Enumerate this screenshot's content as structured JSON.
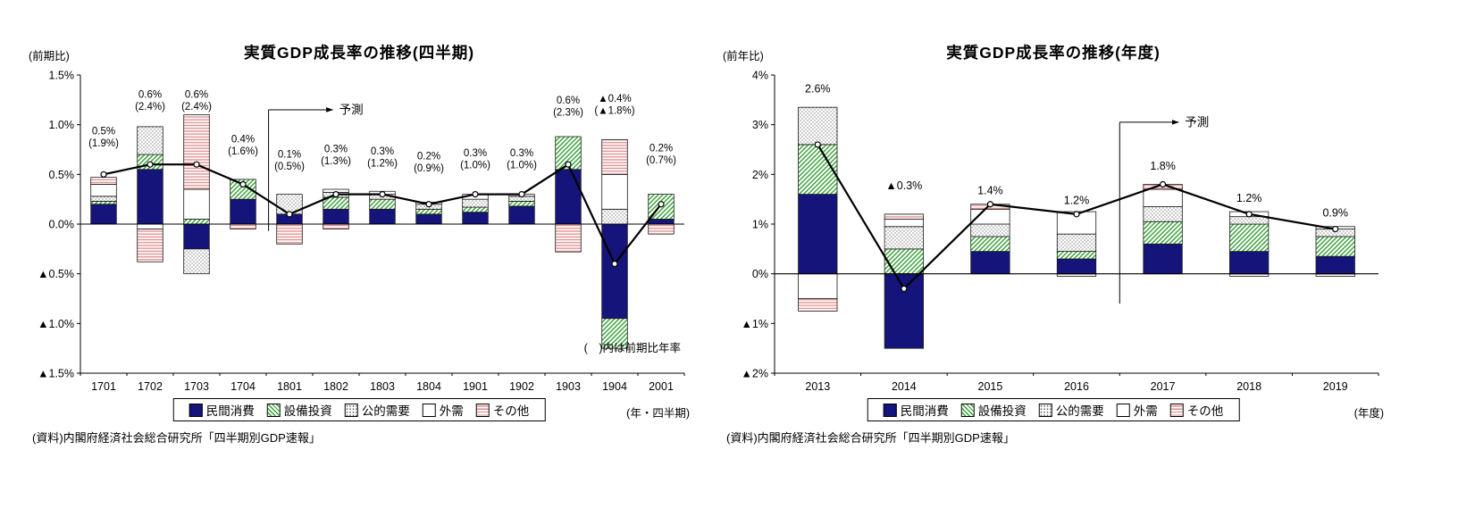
{
  "palette": {
    "navy": "#14147a",
    "green": "#33a033",
    "dot": "#555555",
    "pink": "#e08a8a",
    "line": "#000000"
  },
  "legend": {
    "items": [
      {
        "label": "民間消費",
        "style": "navy"
      },
      {
        "label": "設備投資",
        "style": "green-hatch"
      },
      {
        "label": "公的需要",
        "style": "dots"
      },
      {
        "label": "外需",
        "style": "white"
      },
      {
        "label": "その他",
        "style": "pink-stripes"
      }
    ]
  },
  "chart_data": [
    {
      "type": "bar",
      "subtype": "stacked-bar-with-total-line",
      "title": "実質GDP成長率の推移(四半期)",
      "y_unit_label": "(前期比)",
      "x_axis_label": "(年・四半期)",
      "note": "(　)内は前期比年率",
      "forecast_label": "予測",
      "source": "(資料)内閣府経済社会総合研究所「四半期別GDP速報」",
      "ylim": [
        -1.5,
        1.5
      ],
      "yticks": [
        {
          "v": 1.5,
          "label": "1.5%"
        },
        {
          "v": 1.0,
          "label": "1.0%"
        },
        {
          "v": 0.5,
          "label": "0.5%"
        },
        {
          "v": 0.0,
          "label": "0.0%"
        },
        {
          "v": -0.5,
          "label": "▲0.5%"
        },
        {
          "v": -1.0,
          "label": "▲1.0%"
        },
        {
          "v": -1.5,
          "label": "▲1.5%"
        }
      ],
      "categories": [
        "1701",
        "1702",
        "1703",
        "1704",
        "1801",
        "1802",
        "1803",
        "1804",
        "1901",
        "1902",
        "1903",
        "1904",
        "2001"
      ],
      "series": [
        {
          "name": "民間消費",
          "style": "navy",
          "values": [
            0.2,
            0.55,
            -0.25,
            0.25,
            0.1,
            0.15,
            0.15,
            0.1,
            0.12,
            0.18,
            0.55,
            -0.95,
            0.05
          ]
        },
        {
          "name": "設備投資",
          "style": "green-hatch",
          "values": [
            0.03,
            0.15,
            0.05,
            0.2,
            0.0,
            0.12,
            0.1,
            0.05,
            0.05,
            0.05,
            0.33,
            -0.3,
            0.25
          ]
        },
        {
          "name": "公的需要",
          "style": "dots",
          "values": [
            0.05,
            0.28,
            -0.25,
            0.0,
            0.2,
            0.05,
            0.05,
            0.05,
            0.08,
            0.05,
            0.0,
            0.15,
            0.0
          ]
        },
        {
          "name": "外需",
          "style": "white",
          "values": [
            0.12,
            -0.05,
            0.3,
            0.0,
            0.0,
            0.03,
            0.03,
            0.02,
            0.05,
            0.02,
            0.0,
            0.35,
            0.0
          ]
        },
        {
          "name": "その他",
          "style": "pink-stripes",
          "values": [
            0.07,
            -0.33,
            0.75,
            -0.05,
            -0.2,
            -0.05,
            0.0,
            0.0,
            0.0,
            0.0,
            -0.28,
            0.35,
            -0.1
          ]
        }
      ],
      "line": {
        "values": [
          0.5,
          0.6,
          0.6,
          0.4,
          0.1,
          0.3,
          0.3,
          0.2,
          0.3,
          0.3,
          0.6,
          -0.4,
          0.2
        ]
      },
      "point_labels": [
        {
          "main": "0.5%",
          "sub": "(1.9%)",
          "y": 0.78
        },
        {
          "main": "0.6%",
          "sub": "(2.4%)",
          "y": 1.15
        },
        {
          "main": "0.6%",
          "sub": "(2.4%)",
          "y": 1.15
        },
        {
          "main": "0.4%",
          "sub": "(1.6%)",
          "y": 0.7
        },
        {
          "main": "0.1%",
          "sub": "(0.5%)",
          "y": 0.55
        },
        {
          "main": "0.3%",
          "sub": "(1.3%)",
          "y": 0.6
        },
        {
          "main": "0.3%",
          "sub": "(1.2%)",
          "y": 0.58
        },
        {
          "main": "0.2%",
          "sub": "(0.9%)",
          "y": 0.53
        },
        {
          "main": "0.3%",
          "sub": "(1.0%)",
          "y": 0.56
        },
        {
          "main": "0.3%",
          "sub": "(1.0%)",
          "y": 0.56
        },
        {
          "main": "0.6%",
          "sub": "(2.3%)",
          "y": 1.09
        },
        {
          "main": "▲0.4%",
          "sub": "(▲1.8%)",
          "y": 1.11
        },
        {
          "main": "0.2%",
          "sub": "(0.7%)",
          "y": 0.61
        }
      ],
      "forecast": {
        "x_index": 3.55,
        "arrow_y": 1.15,
        "line_bottom": -0.07,
        "arrow_len": 72
      },
      "bar_frac": 0.55,
      "legend_position": "bottom",
      "grid": false
    },
    {
      "type": "bar",
      "subtype": "stacked-bar-with-total-line",
      "title": "実質GDP成長率の推移(年度)",
      "y_unit_label": "(前年比)",
      "x_axis_label": "(年度)",
      "forecast_label": "予測",
      "source": "(資料)内閣府経済社会総合研究所「四半期別GDP速報」",
      "ylim": [
        -2,
        4
      ],
      "yticks": [
        {
          "v": 4,
          "label": "4%"
        },
        {
          "v": 3,
          "label": "3%"
        },
        {
          "v": 2,
          "label": "2%"
        },
        {
          "v": 1,
          "label": "1%"
        },
        {
          "v": 0,
          "label": "0%"
        },
        {
          "v": -1,
          "label": "▲1%"
        },
        {
          "v": -2,
          "label": "▲2%"
        }
      ],
      "categories": [
        "2013",
        "2014",
        "2015",
        "2016",
        "2017",
        "2018",
        "2019"
      ],
      "series": [
        {
          "name": "民間消費",
          "style": "navy",
          "values": [
            1.6,
            -1.5,
            0.45,
            0.3,
            0.6,
            0.45,
            0.35
          ]
        },
        {
          "name": "設備投資",
          "style": "green-hatch",
          "values": [
            1.0,
            0.5,
            0.3,
            0.15,
            0.45,
            0.55,
            0.4
          ]
        },
        {
          "name": "公的需要",
          "style": "dots",
          "values": [
            0.75,
            0.45,
            0.25,
            0.35,
            0.3,
            0.15,
            0.15
          ]
        },
        {
          "name": "外需",
          "style": "white",
          "values": [
            -0.5,
            0.15,
            0.3,
            0.45,
            0.35,
            0.1,
            0.05
          ]
        },
        {
          "name": "その他",
          "style": "pink-stripes",
          "values": [
            -0.25,
            0.1,
            0.1,
            -0.05,
            0.1,
            -0.05,
            -0.05
          ]
        }
      ],
      "line": {
        "values": [
          2.6,
          -0.3,
          1.4,
          1.2,
          1.8,
          1.2,
          0.9
        ]
      },
      "point_labels": [
        {
          "main": "2.6%",
          "y": 3.65
        },
        {
          "main": "▲0.3%",
          "y": 1.7
        },
        {
          "main": "1.4%",
          "y": 1.6
        },
        {
          "main": "1.2%",
          "y": 1.4
        },
        {
          "main": "1.8%",
          "y": 2.1
        },
        {
          "main": "1.2%",
          "y": 1.45
        },
        {
          "main": "0.9%",
          "y": 1.15
        }
      ],
      "forecast": {
        "x_index": 3.5,
        "arrow_y": 3.05,
        "line_bottom": -0.6,
        "arrow_len": 66
      },
      "bar_frac": 0.45,
      "legend_position": "bottom",
      "grid": false
    }
  ]
}
